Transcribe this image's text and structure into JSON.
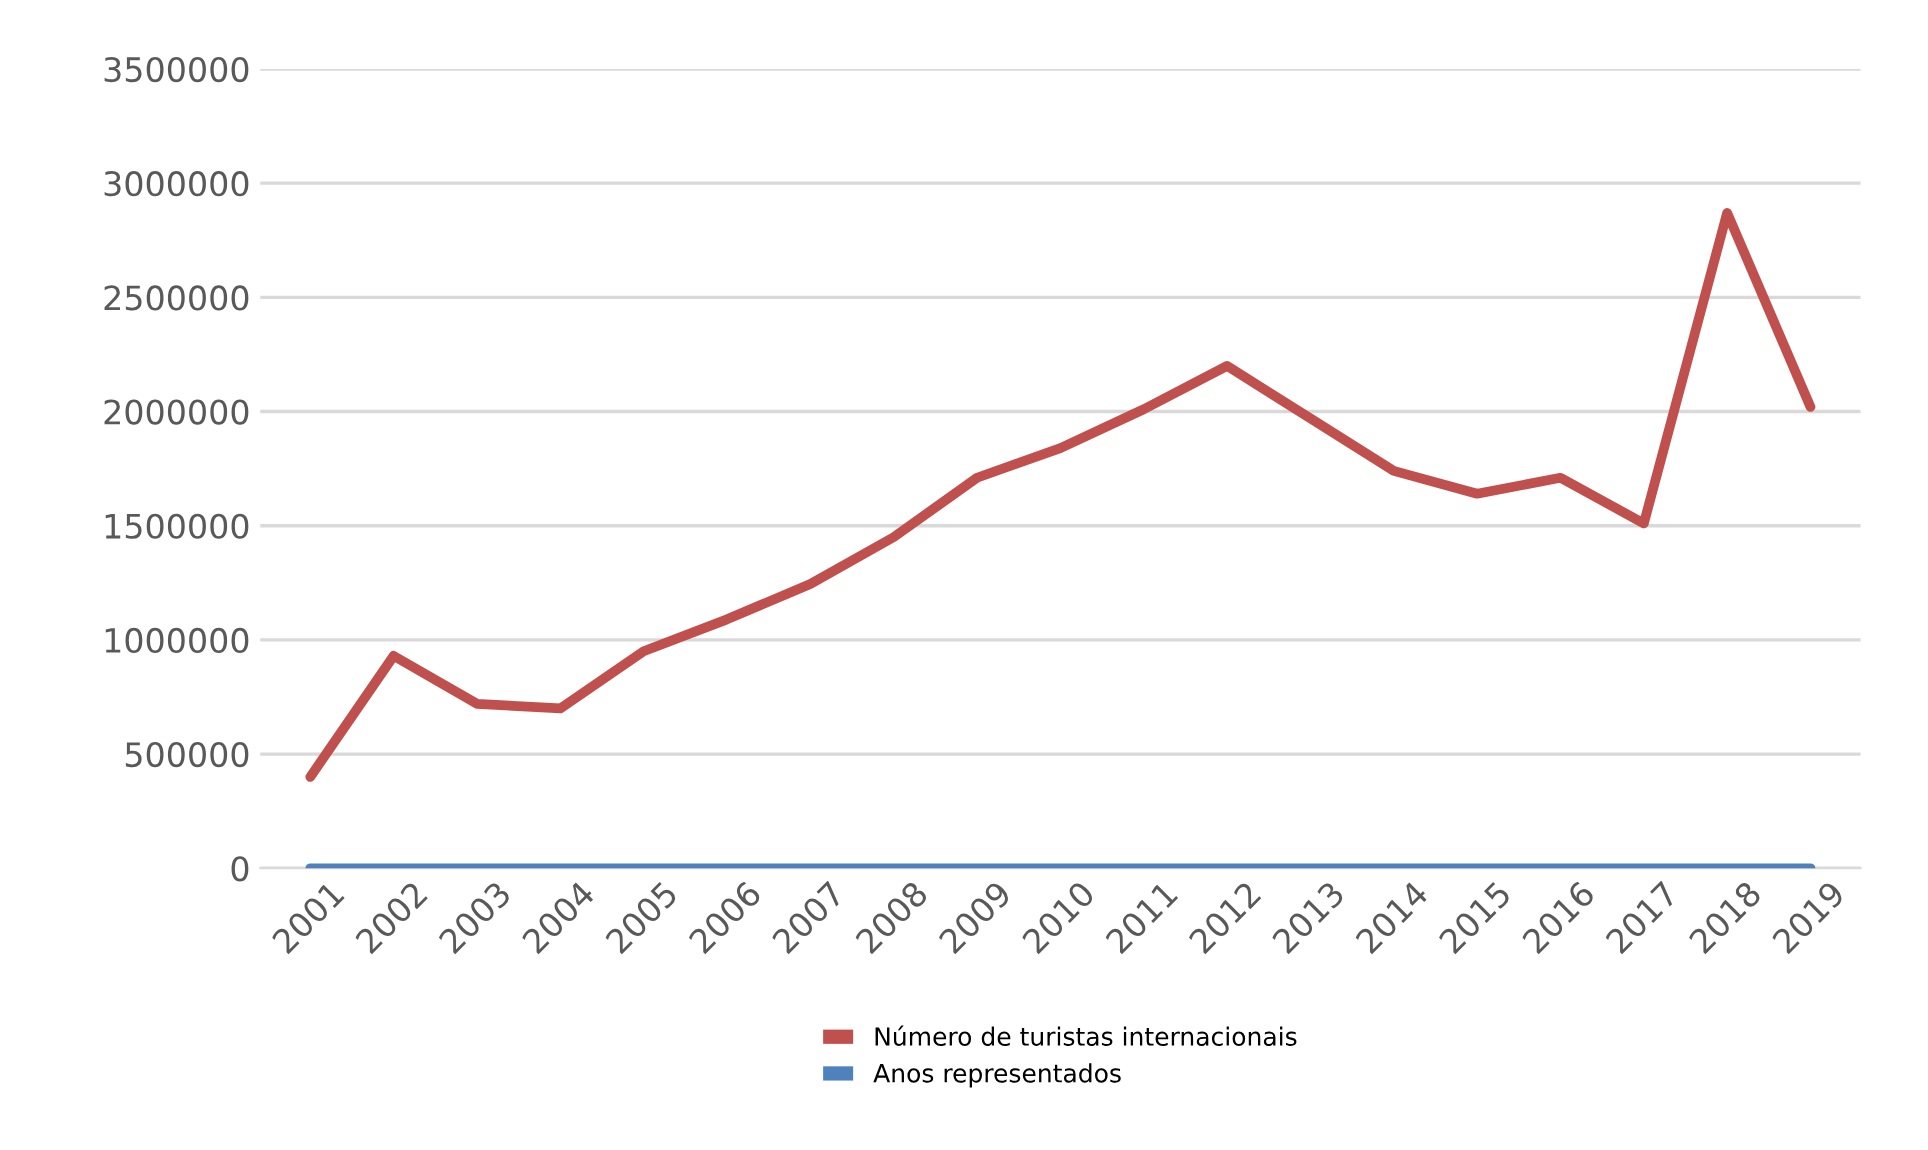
{
  "chart_data": {
    "type": "line",
    "categories": [
      "2001",
      "2002",
      "2003",
      "2004",
      "2005",
      "2006",
      "2007",
      "2008",
      "2009",
      "2010",
      "2011",
      "2012",
      "2013",
      "2014",
      "2015",
      "2016",
      "2017",
      "2018",
      "2019"
    ],
    "series": [
      {
        "name": "Número de turistas internacionais",
        "color": "#c0504d",
        "values": [
          400000,
          930000,
          720000,
          700000,
          950000,
          1090000,
          1245000,
          1450000,
          1710000,
          1840000,
          2010000,
          2200000,
          1970000,
          1740000,
          1640000,
          1710000,
          1510000,
          2870000,
          2020000
        ]
      },
      {
        "name": "Anos representados",
        "color": "#4f81bd",
        "values": [
          0,
          0,
          0,
          0,
          0,
          0,
          0,
          0,
          0,
          0,
          0,
          0,
          0,
          0,
          0,
          0,
          0,
          0,
          0
        ]
      }
    ],
    "ylim": [
      0,
      3500000
    ],
    "yticks": [
      0,
      500000,
      1000000,
      1500000,
      2000000,
      2500000,
      3000000,
      3500000
    ],
    "grid": "y",
    "legend": "bottom",
    "marker": "none",
    "line_style": "solid"
  }
}
